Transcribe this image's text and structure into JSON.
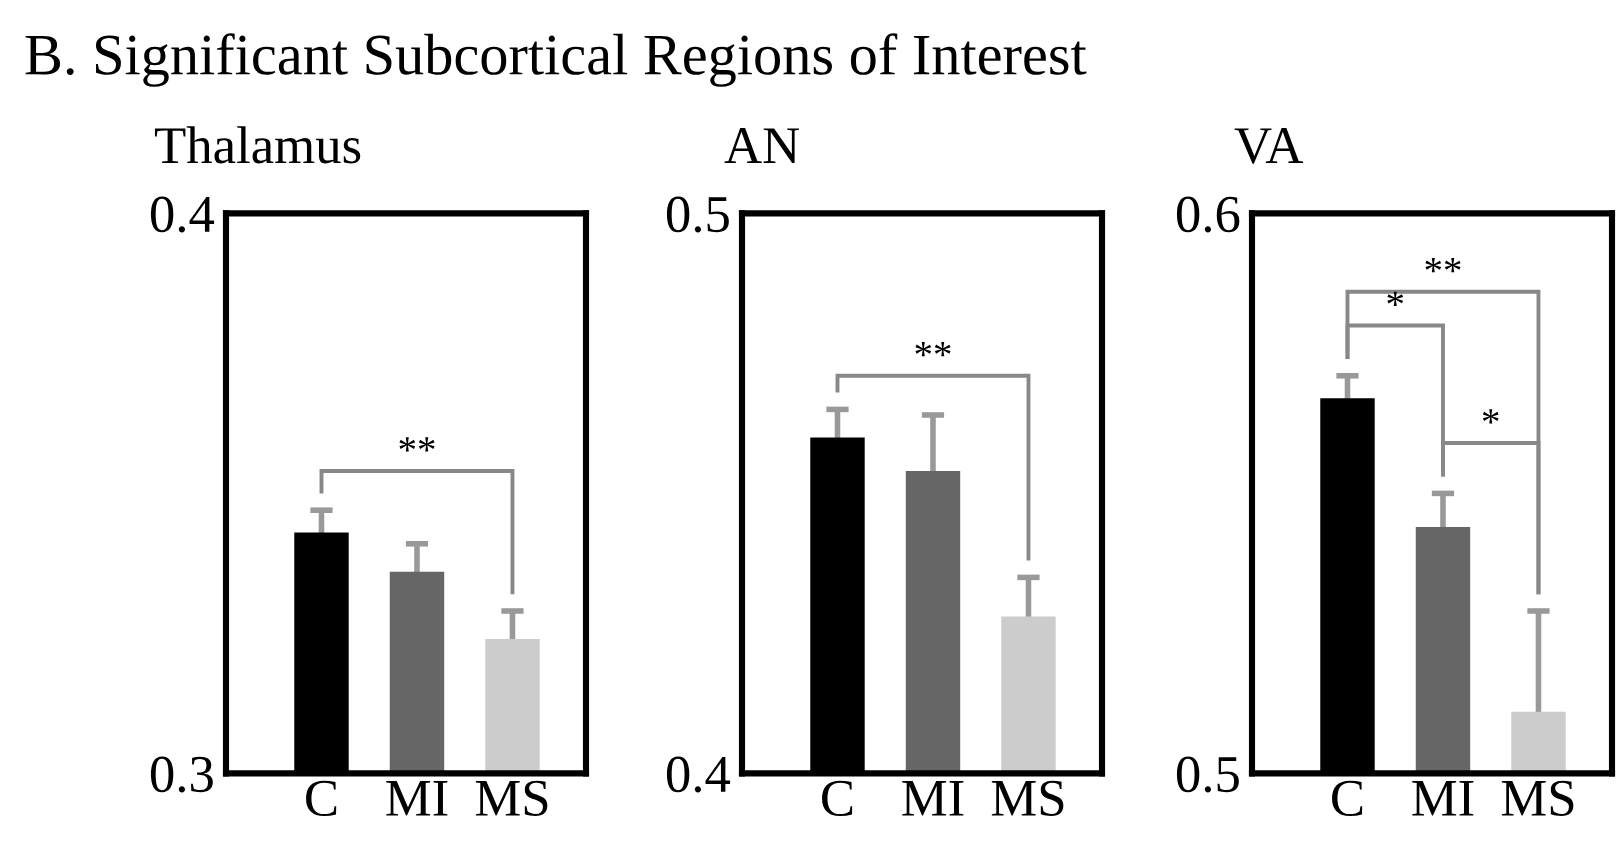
{
  "chart_data": [
    {
      "type": "bar",
      "title": "Thalamus",
      "categories": [
        "C",
        "MI",
        "MS"
      ],
      "values": [
        0.343,
        0.336,
        0.324
      ],
      "colors": [
        "#000000",
        "#666666",
        "#cccccc"
      ],
      "errors": [
        0.004,
        0.005,
        0.005
      ],
      "ylim": [
        0.3,
        0.4
      ],
      "yticks": [
        0.3,
        0.4
      ],
      "grid": false,
      "annotations": [
        "B. Significant Subcortical Regions of Interest",
        "**"
      ]
    },
    {
      "type": "bar",
      "title": "AN",
      "categories": [
        "C",
        "MI",
        "MS"
      ],
      "values": [
        0.46,
        0.454,
        0.428
      ],
      "colors": [
        "#000000",
        "#666666",
        "#cccccc"
      ],
      "errors": [
        0.005,
        0.01,
        0.007
      ],
      "ylim": [
        0.4,
        0.5
      ],
      "yticks": [
        0.4,
        0.5
      ],
      "grid": false,
      "annotations": [
        "**"
      ]
    },
    {
      "type": "bar",
      "title": "VA",
      "categories": [
        "C",
        "MI",
        "MS"
      ],
      "values": [
        0.567,
        0.544,
        0.511
      ],
      "colors": [
        "#000000",
        "#666666",
        "#cccccc"
      ],
      "errors": [
        0.004,
        0.006,
        0.018
      ],
      "ylim": [
        0.5,
        0.6
      ],
      "yticks": [
        0.5,
        0.6
      ],
      "grid": false,
      "annotations": [
        "**",
        "*",
        "*"
      ]
    }
  ]
}
